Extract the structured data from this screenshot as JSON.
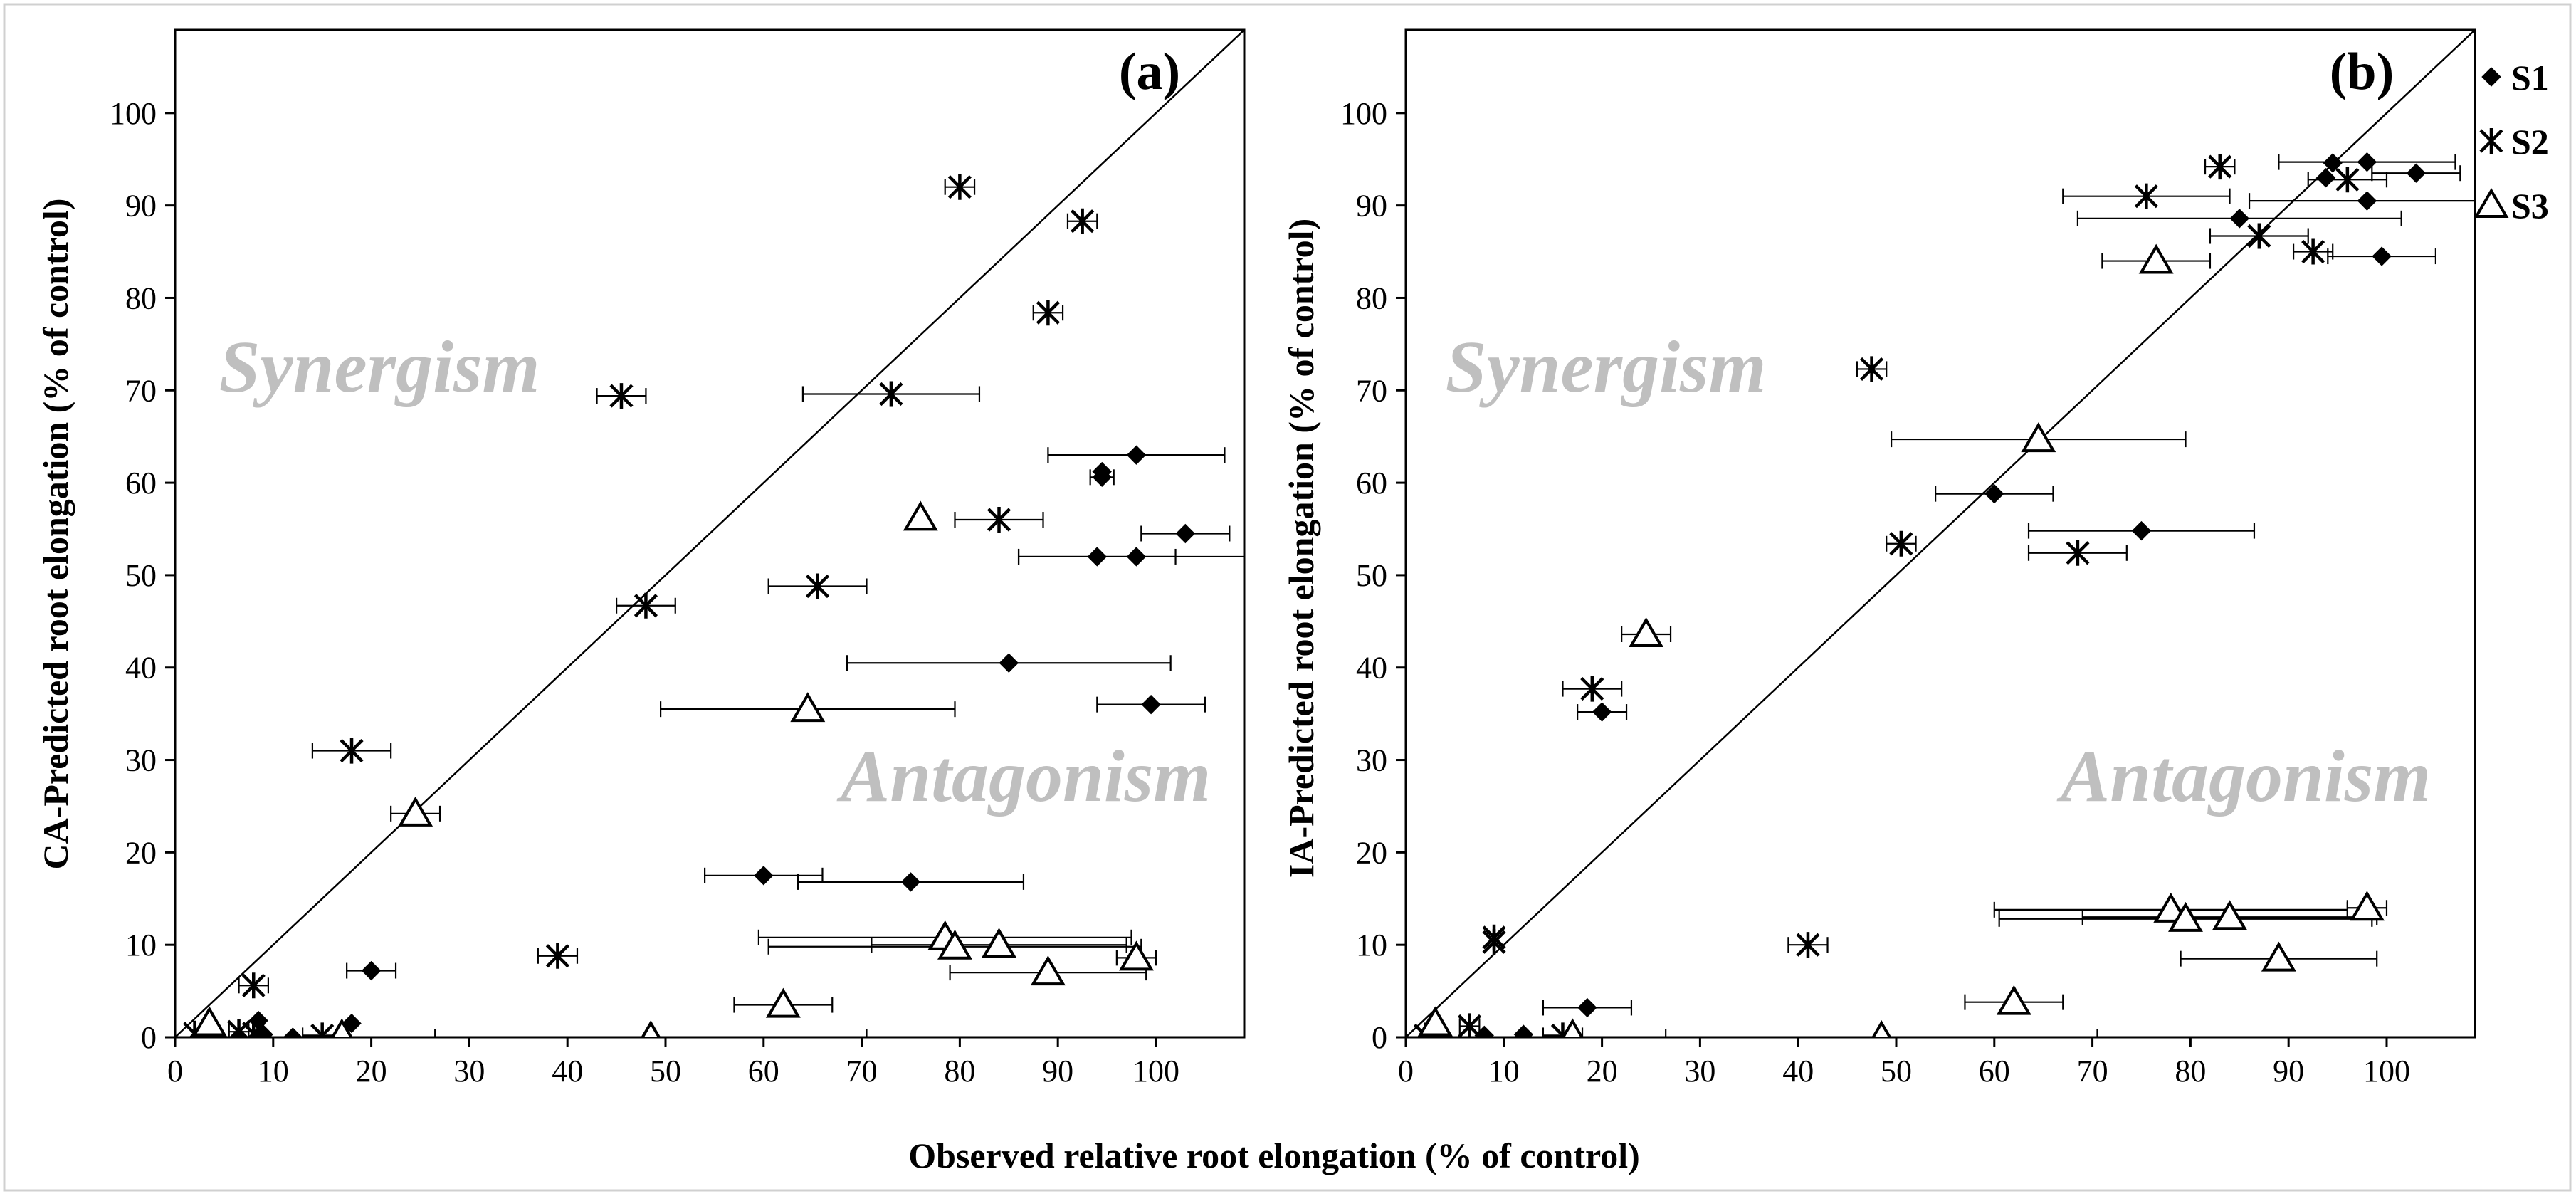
{
  "chart_data": [
    {
      "type": "scatter",
      "panel_label": "(a)",
      "ylabel": "CA-Predicted root elongation (% of control)",
      "region_labels": {
        "upper": "Synergism",
        "lower": "Antagonism"
      },
      "xlim": [
        0,
        109
      ],
      "ylim": [
        0,
        109
      ],
      "x_ticks": [
        "0",
        "10",
        "20",
        "30",
        "40",
        "50",
        "60",
        "70",
        "80",
        "90",
        "100"
      ],
      "y_ticks": [
        "0",
        "10",
        "20",
        "30",
        "40",
        "50",
        "60",
        "70",
        "80",
        "90",
        "100"
      ],
      "reference_line": "1:1",
      "series": [
        {
          "name": "S1",
          "marker": "diamond",
          "points": [
            {
              "x": 98,
              "y": 63,
              "xerr": 9
            },
            {
              "x": 94.5,
              "y": 61.2,
              "xerr": 0
            },
            {
              "x": 94.5,
              "y": 60.6,
              "xerr": 1.2
            },
            {
              "x": 103,
              "y": 54.5,
              "xerr": 4.5
            },
            {
              "x": 94,
              "y": 52,
              "xerr": 8
            },
            {
              "x": 98,
              "y": 52,
              "xerr": 12
            },
            {
              "x": 85,
              "y": 40.5,
              "xerr": 16.5
            },
            {
              "x": 99.5,
              "y": 36,
              "xerr": 5.5
            },
            {
              "x": 60,
              "y": 17.5,
              "xerr": 6
            },
            {
              "x": 75,
              "y": 16.8,
              "xerr": 11.5
            },
            {
              "x": 20,
              "y": 7.2,
              "xerr": 2.5
            },
            {
              "x": 18,
              "y": 1.5,
              "xerr": 0
            },
            {
              "x": 8.5,
              "y": 1.8,
              "xerr": 0
            },
            {
              "x": 9,
              "y": 0.3,
              "xerr": 0
            },
            {
              "x": 12,
              "y": 0,
              "xerr": 0
            },
            {
              "x": 6.5,
              "y": 0,
              "xerr": 0
            }
          ]
        },
        {
          "name": "S2",
          "marker": "asterisk",
          "points": [
            {
              "x": 80,
              "y": 92,
              "xerr": 1.5
            },
            {
              "x": 92.5,
              "y": 88.3,
              "xerr": 1.5
            },
            {
              "x": 89,
              "y": 78.4,
              "xerr": 1.5
            },
            {
              "x": 73,
              "y": 69.6,
              "xerr": 9
            },
            {
              "x": 45.5,
              "y": 69.4,
              "xerr": 2.5
            },
            {
              "x": 84,
              "y": 56,
              "xerr": 4.5
            },
            {
              "x": 65.5,
              "y": 48.8,
              "xerr": 5
            },
            {
              "x": 48,
              "y": 46.7,
              "xerr": 3
            },
            {
              "x": 18,
              "y": 31,
              "xerr": 4
            },
            {
              "x": 39,
              "y": 8.8,
              "xerr": 2
            },
            {
              "x": 8,
              "y": 5.6,
              "xerr": 1.5
            },
            {
              "x": 2,
              "y": 0.4,
              "xerr": 0
            },
            {
              "x": 6.5,
              "y": 0.6,
              "xerr": 1
            },
            {
              "x": 8,
              "y": 0.4,
              "xerr": 0
            },
            {
              "x": 15,
              "y": 0.2,
              "xerr": 2
            }
          ]
        },
        {
          "name": "S3",
          "marker": "triangle",
          "points": [
            {
              "x": 76,
              "y": 56.2,
              "xerr": 0
            },
            {
              "x": 64.5,
              "y": 35.5,
              "xerr": 15
            },
            {
              "x": 24.5,
              "y": 24.2,
              "xerr": 2.5
            },
            {
              "x": 78.5,
              "y": 10.8,
              "xerr": 19
            },
            {
              "x": 79.5,
              "y": 9.8,
              "xerr": 19
            },
            {
              "x": 84,
              "y": 10,
              "xerr": 13
            },
            {
              "x": 98,
              "y": 8.6,
              "xerr": 2
            },
            {
              "x": 89,
              "y": 7,
              "xerr": 10
            },
            {
              "x": 62,
              "y": 3.5,
              "xerr": 5
            },
            {
              "x": 48.5,
              "y": 0,
              "xerr": 22
            },
            {
              "x": 3.5,
              "y": 1.5,
              "xerr": 0
            },
            {
              "x": 17,
              "y": 0.2,
              "xerr": 0
            }
          ]
        }
      ]
    },
    {
      "type": "scatter",
      "panel_label": "(b)",
      "ylabel": "IA-Predicted root elongation (% of control)",
      "region_labels": {
        "upper": "Synergism",
        "lower": "Antagonism"
      },
      "xlim": [
        0,
        109
      ],
      "ylim": [
        0,
        109
      ],
      "x_ticks": [
        "0",
        "10",
        "20",
        "30",
        "40",
        "50",
        "60",
        "70",
        "80",
        "90",
        "100"
      ],
      "y_ticks": [
        "0",
        "10",
        "20",
        "30",
        "40",
        "50",
        "60",
        "70",
        "80",
        "90",
        "100"
      ],
      "reference_line": "1:1",
      "series": [
        {
          "name": "S1",
          "marker": "diamond",
          "points": [
            {
              "x": 98,
              "y": 94.7,
              "xerr": 9
            },
            {
              "x": 94.5,
              "y": 94.6,
              "xerr": 0
            },
            {
              "x": 93.8,
              "y": 93,
              "xerr": 0
            },
            {
              "x": 103,
              "y": 93.5,
              "xerr": 4.5
            },
            {
              "x": 98,
              "y": 90.5,
              "xerr": 12
            },
            {
              "x": 85,
              "y": 88.6,
              "xerr": 16.5
            },
            {
              "x": 99.5,
              "y": 84.5,
              "xerr": 5.5
            },
            {
              "x": 60,
              "y": 58.8,
              "xerr": 6
            },
            {
              "x": 75,
              "y": 54.8,
              "xerr": 11.5
            },
            {
              "x": 20,
              "y": 35.2,
              "xerr": 2.5
            },
            {
              "x": 18.5,
              "y": 3.2,
              "xerr": 4.5
            },
            {
              "x": 12,
              "y": 0.3,
              "xerr": 0
            },
            {
              "x": 8,
              "y": 0.2,
              "xerr": 0
            }
          ]
        },
        {
          "name": "S2",
          "marker": "asterisk",
          "points": [
            {
              "x": 83,
              "y": 94.2,
              "xerr": 1.5
            },
            {
              "x": 96,
              "y": 92.8,
              "xerr": 4
            },
            {
              "x": 75.5,
              "y": 91,
              "xerr": 8.5
            },
            {
              "x": 87,
              "y": 86.7,
              "xerr": 5
            },
            {
              "x": 92.5,
              "y": 85,
              "xerr": 2
            },
            {
              "x": 47.5,
              "y": 72.3,
              "xerr": 1.5
            },
            {
              "x": 50.5,
              "y": 53.4,
              "xerr": 1.5
            },
            {
              "x": 68.5,
              "y": 52.4,
              "xerr": 5
            },
            {
              "x": 19,
              "y": 37.7,
              "xerr": 3
            },
            {
              "x": 9,
              "y": 10.8,
              "xerr": 0
            },
            {
              "x": 9,
              "y": 10.3,
              "xerr": 0
            },
            {
              "x": 41,
              "y": 10,
              "xerr": 2
            },
            {
              "x": 2,
              "y": 0.2,
              "xerr": 0
            },
            {
              "x": 6.5,
              "y": 1.2,
              "xerr": 1
            },
            {
              "x": 16,
              "y": 0.2,
              "xerr": 2
            }
          ]
        },
        {
          "name": "S3",
          "marker": "triangle",
          "points": [
            {
              "x": 76.5,
              "y": 84,
              "xerr": 5.5
            },
            {
              "x": 64.5,
              "y": 64.7,
              "xerr": 15
            },
            {
              "x": 24.5,
              "y": 43.6,
              "xerr": 2.5
            },
            {
              "x": 78,
              "y": 13.8,
              "xerr": 18
            },
            {
              "x": 98,
              "y": 14,
              "xerr": 2
            },
            {
              "x": 79.5,
              "y": 12.8,
              "xerr": 19
            },
            {
              "x": 84,
              "y": 13,
              "xerr": 15
            },
            {
              "x": 89,
              "y": 8.5,
              "xerr": 10
            },
            {
              "x": 62,
              "y": 3.8,
              "xerr": 5
            },
            {
              "x": 48.5,
              "y": 0,
              "xerr": 22
            },
            {
              "x": 3,
              "y": 1.5,
              "xerr": 0
            },
            {
              "x": 17,
              "y": 0.2,
              "xerr": 0
            }
          ]
        }
      ]
    }
  ],
  "legend": [
    {
      "label": "S1",
      "marker": "diamond"
    },
    {
      "label": "S2",
      "marker": "asterisk"
    },
    {
      "label": "S3",
      "marker": "triangle"
    }
  ],
  "xlabel": "Observed relative root elongation (% of control)"
}
